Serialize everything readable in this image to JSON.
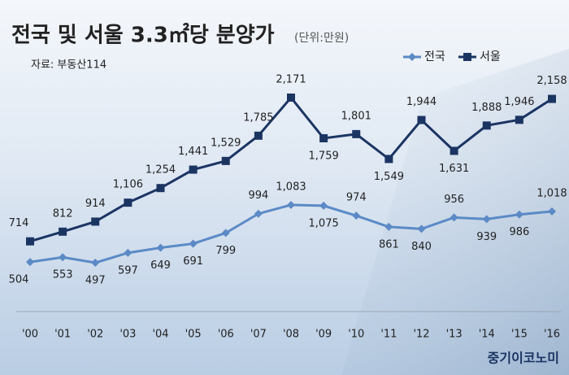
{
  "chart_data": {
    "type": "line",
    "title": "전국 및 서울 3.3㎡당 분양가",
    "subtitle": "(단위:만원)",
    "source": "자료: 부동산114",
    "brand": "중기이코노미",
    "categories": [
      "'00",
      "'01",
      "'02",
      "'03",
      "'04",
      "'05",
      "'06",
      "'07",
      "'08",
      "'09",
      "'10",
      "'11",
      "'12",
      "'13",
      "'14",
      "'15",
      "'16"
    ],
    "series": [
      {
        "name": "전국",
        "color": "#5b8ac6",
        "marker": "diamond",
        "values": [
          504,
          553,
          497,
          597,
          649,
          691,
          799,
          994,
          1083,
          1075,
          974,
          861,
          840,
          956,
          939,
          986,
          1018
        ],
        "value_labels": [
          "504",
          "553",
          "497",
          "597",
          "649",
          "691",
          "799",
          "994",
          "1,083",
          "1,075",
          "974",
          "861",
          "840",
          "956",
          "939",
          "986",
          "1,018"
        ]
      },
      {
        "name": "서울",
        "color": "#1b3563",
        "marker": "square",
        "values": [
          714,
          812,
          914,
          1106,
          1254,
          1441,
          1529,
          1785,
          2171,
          1759,
          1801,
          1549,
          1944,
          1631,
          1888,
          1946,
          2158
        ],
        "value_labels": [
          "714",
          "812",
          "914",
          "1,106",
          "1,254",
          "1,441",
          "1,529",
          "1,785",
          "2,171",
          "1,759",
          "1,801",
          "1,549",
          "1,944",
          "1,631",
          "1,888",
          "1,946",
          "2,158"
        ]
      }
    ]
  }
}
